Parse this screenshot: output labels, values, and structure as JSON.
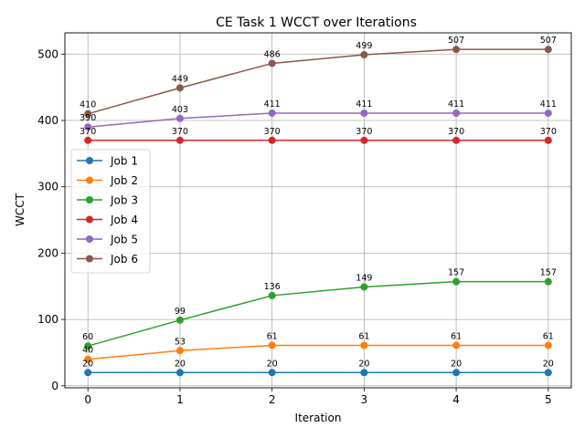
{
  "chart_data": {
    "type": "line",
    "title": "CE Task 1 WCCT over Iterations",
    "xlabel": "Iteration",
    "ylabel": "WCCT",
    "x": [
      0,
      1,
      2,
      3,
      4,
      5
    ],
    "xlim": [
      -0.25,
      5.25
    ],
    "ylim": [
      -3,
      532
    ],
    "xticks": [
      "0",
      "1",
      "2",
      "3",
      "4",
      "5"
    ],
    "yticks": [
      "0",
      "100",
      "200",
      "300",
      "400",
      "500"
    ],
    "grid": true,
    "legend_position": "center-left",
    "series": [
      {
        "name": "Job 1",
        "color": "#1f77b4",
        "values": [
          20,
          20,
          20,
          20,
          20,
          20
        ]
      },
      {
        "name": "Job 2",
        "color": "#ff7f0e",
        "values": [
          40,
          53,
          61,
          61,
          61,
          61
        ]
      },
      {
        "name": "Job 3",
        "color": "#2ca02c",
        "values": [
          60,
          99,
          136,
          149,
          157,
          157
        ]
      },
      {
        "name": "Job 4",
        "color": "#d62728",
        "values": [
          370,
          370,
          370,
          370,
          370,
          370
        ]
      },
      {
        "name": "Job 5",
        "color": "#9467bd",
        "values": [
          390,
          403,
          411,
          411,
          411,
          411
        ]
      },
      {
        "name": "Job 6",
        "color": "#8c564b",
        "values": [
          410,
          449,
          486,
          499,
          507,
          507
        ]
      }
    ]
  }
}
